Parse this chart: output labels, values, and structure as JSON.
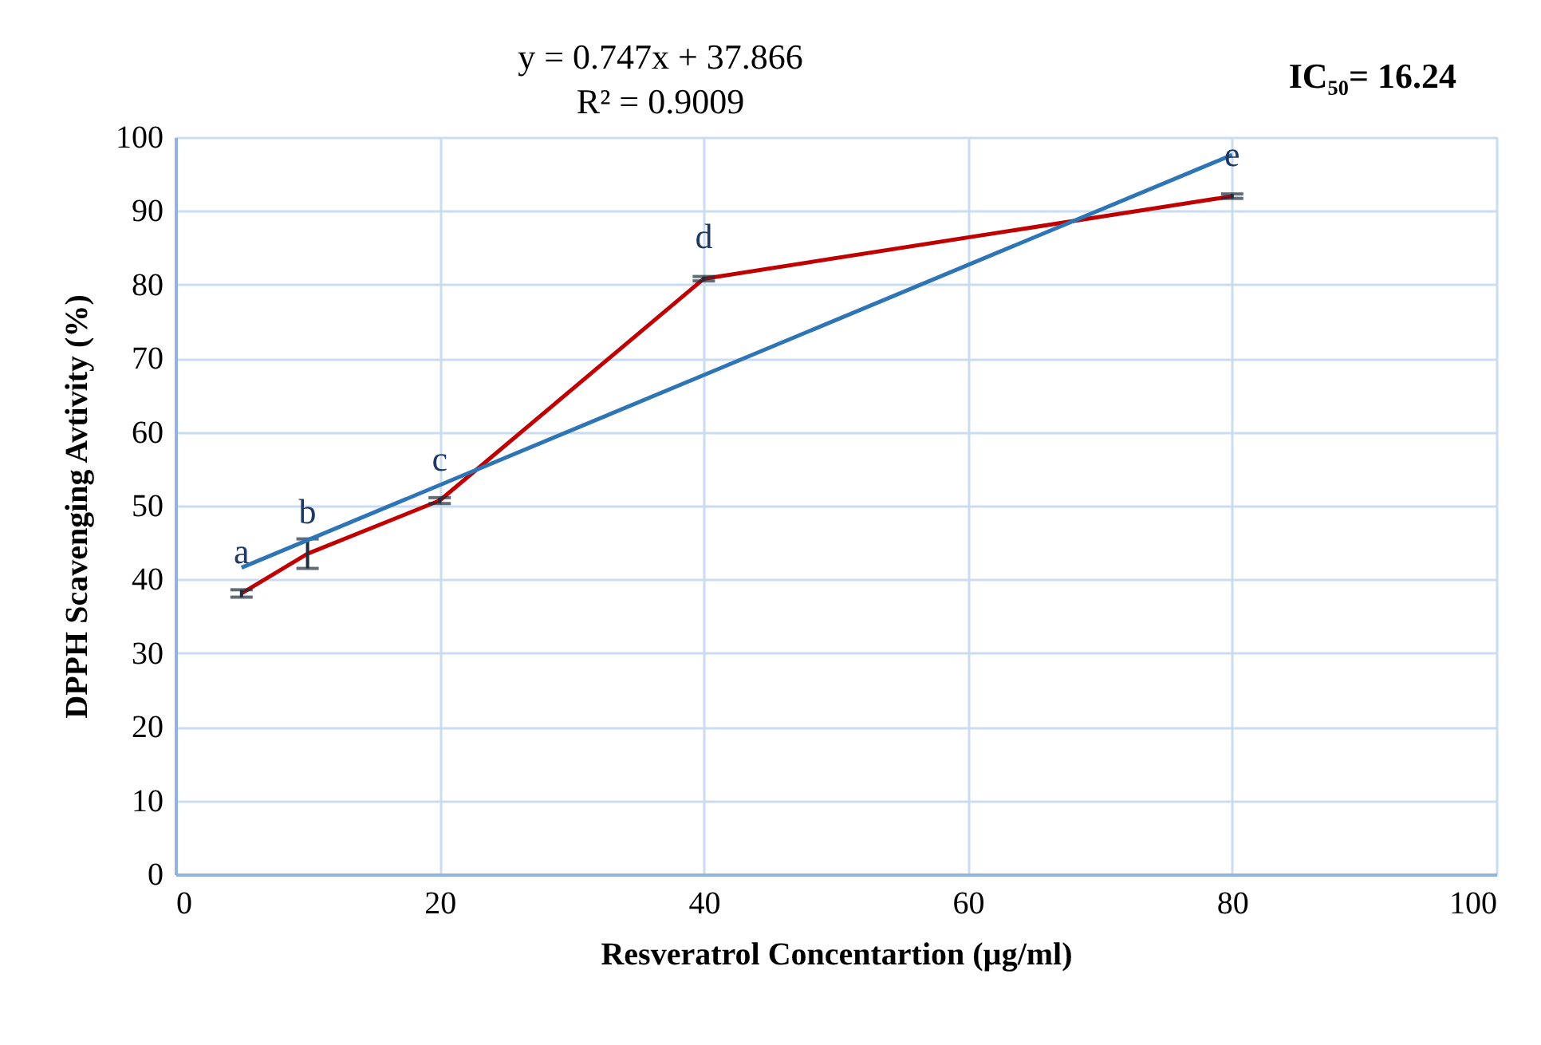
{
  "chart_data": {
    "type": "line",
    "xlabel": "Resveratrol Concentartion (µg/ml)",
    "ylabel": "DPPH Scavenging Avtivity (%)",
    "series": [
      {
        "type": "line",
        "color": "#c00000",
        "x": [
          5,
          10,
          20,
          40,
          80
        ],
        "values": [
          38.1,
          43.5,
          50.7,
          80.8,
          92.0
        ],
        "errors": [
          0.5,
          2.0,
          0.4,
          0.3,
          0.3
        ]
      },
      {
        "type": "line",
        "color": "#2e75b6",
        "x": [
          5,
          80
        ],
        "values": [
          41.6,
          97.6
        ]
      }
    ],
    "annotations": [
      "y = 0.747x + 37.866",
      "R² = 0.9009",
      "IC₅₀= 16.24",
      {
        "text": "a",
        "x": 5,
        "y": 38.1
      },
      {
        "text": "b",
        "x": 10,
        "y": 43.5
      },
      {
        "text": "c",
        "x": 20,
        "y": 50.7
      },
      {
        "text": "d",
        "x": 40,
        "y": 80.8
      },
      {
        "text": "e",
        "x": 80,
        "y": 92.0
      }
    ],
    "xlim": [
      0,
      100
    ],
    "xticks": [
      0,
      20,
      40,
      60,
      80,
      100
    ],
    "ylim": [
      0,
      100
    ],
    "yticks": [
      0,
      10,
      20,
      30,
      40,
      50,
      60,
      70,
      80,
      90,
      100
    ],
    "grid": true,
    "legend": false,
    "marker": "none",
    "line_style": "solid"
  }
}
